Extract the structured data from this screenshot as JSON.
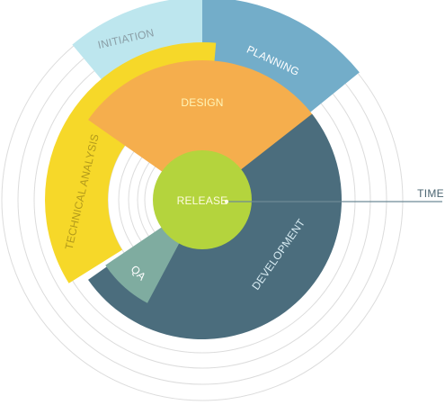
{
  "diagram": {
    "colors": {
      "ring_stroke": "#dcdcdc",
      "initiation": "#bde6ee",
      "planning": "#73adc9",
      "technical_analysis": "#f6d829",
      "design": "#f5ae4d",
      "development": "#4b6d7d",
      "qa": "#7faca0",
      "release": "#b4d43d",
      "time_axis": "#6d8a96",
      "text_light": "#ffffff",
      "text_initiation": "#8a9ea6",
      "text_design": "#fff5b8",
      "text_tech": "#b39a1b",
      "text_release": "#fffbe0",
      "text_development": "#d7ebf2",
      "text_time": "#4a6470"
    },
    "segments": {
      "initiation": "INITIATION",
      "planning": "PLANNING",
      "technical_analysis": "TECHNICAL ANALYSIS",
      "design": "DESIGN",
      "development": "DEVELOPMENT",
      "qa": "QA",
      "release": "RELEASE"
    },
    "axis": {
      "time": "TIME"
    }
  }
}
